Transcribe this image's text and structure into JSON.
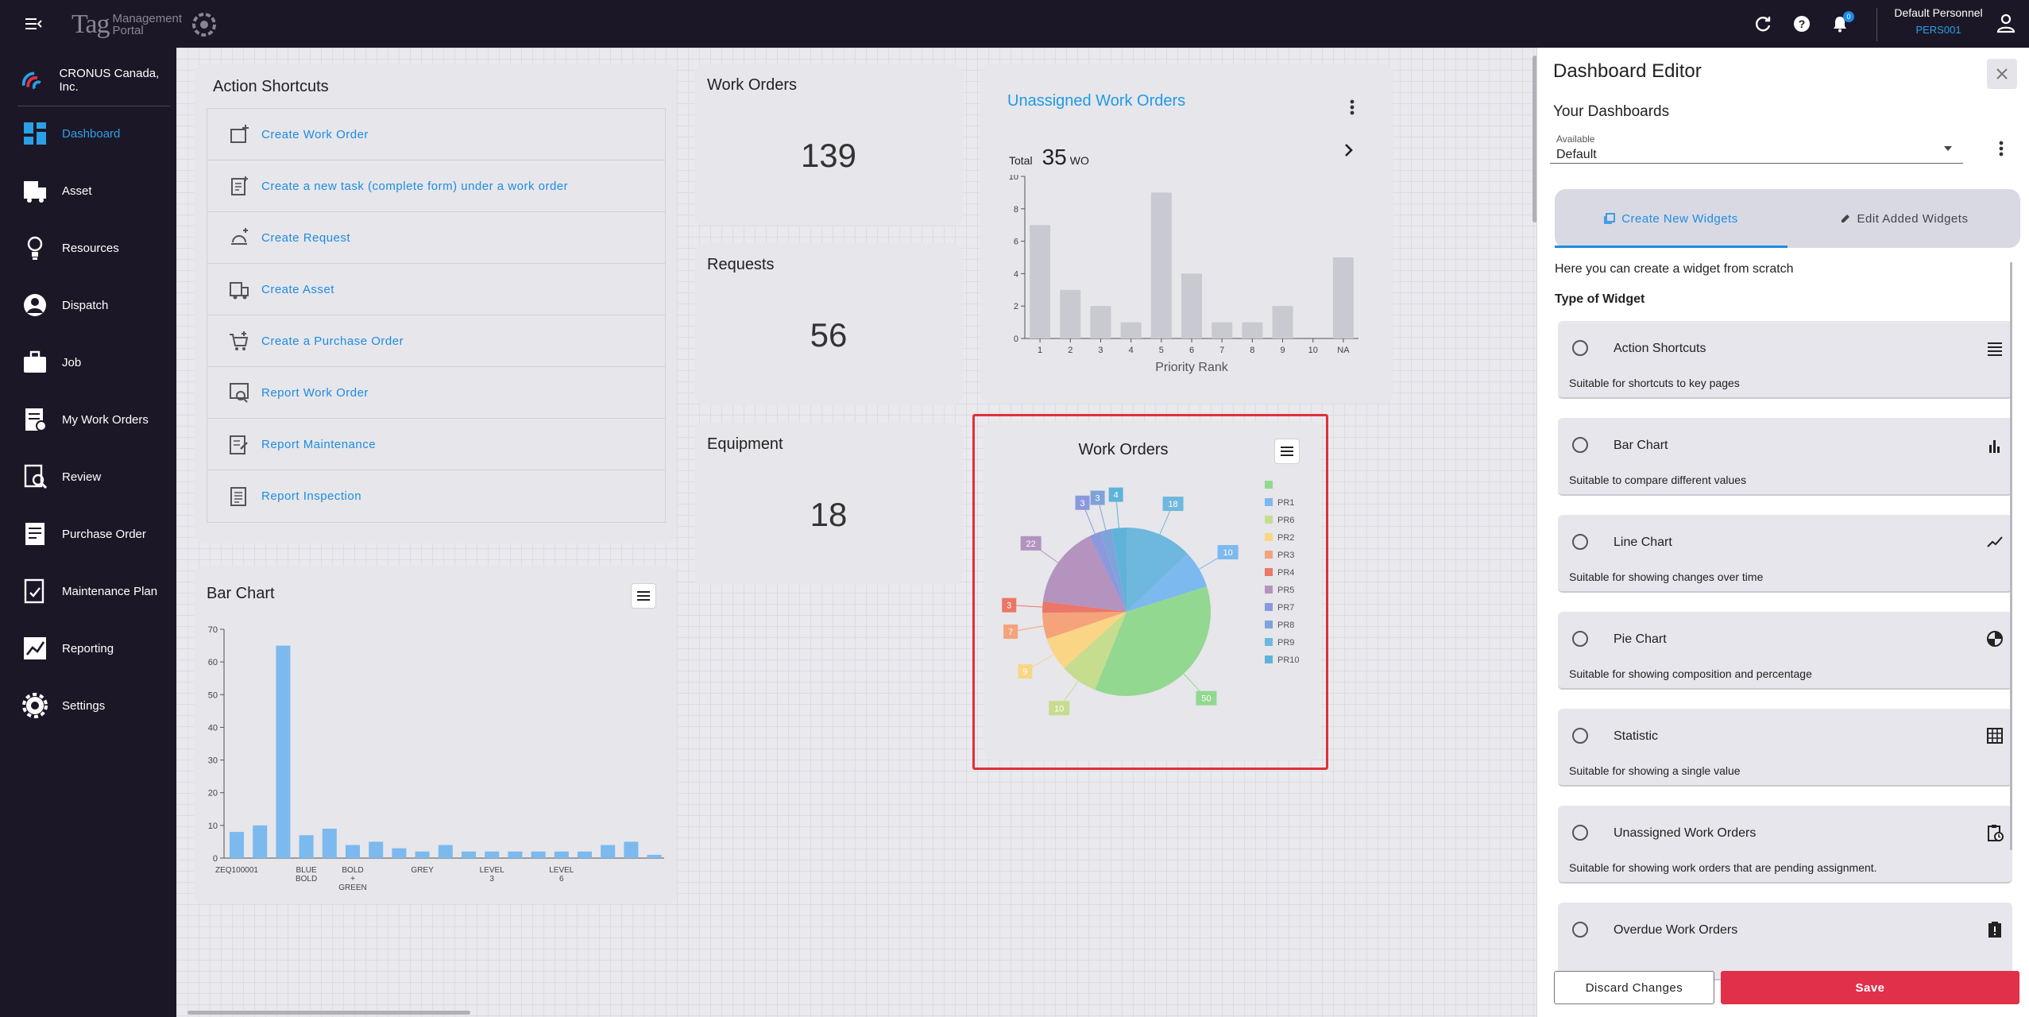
{
  "topbar": {
    "logo_tag": "Tag",
    "logo_line1": "Management",
    "logo_line2": "Portal",
    "notification_count": "0",
    "user_name": "Default Personnel",
    "user_id": "PERS001"
  },
  "sidebar": {
    "company": "CRONUS Canada, Inc.",
    "items": [
      {
        "label": "Dashboard",
        "icon": "dashboard-icon"
      },
      {
        "label": "Asset",
        "icon": "asset-icon"
      },
      {
        "label": "Resources",
        "icon": "resources-icon"
      },
      {
        "label": "Dispatch",
        "icon": "dispatch-icon"
      },
      {
        "label": "Job",
        "icon": "job-icon"
      },
      {
        "label": "My Work Orders",
        "icon": "my-work-orders-icon"
      },
      {
        "label": "Review",
        "icon": "review-icon"
      },
      {
        "label": "Purchase Order",
        "icon": "purchase-order-icon"
      },
      {
        "label": "Maintenance Plan",
        "icon": "maintenance-plan-icon"
      },
      {
        "label": "Reporting",
        "icon": "reporting-icon"
      },
      {
        "label": "Settings",
        "icon": "settings-icon"
      }
    ]
  },
  "shortcuts": {
    "title": "Action Shortcuts",
    "items": [
      "Create Work Order",
      "Create a new task (complete form) under a work order",
      "Create Request",
      "Create Asset",
      "Create a Purchase Order",
      "Report Work Order",
      "Report Maintenance",
      "Report Inspection"
    ]
  },
  "stats": {
    "work_orders": {
      "title": "Work Orders",
      "value": "139"
    },
    "requests": {
      "title": "Requests",
      "value": "56"
    },
    "equipment": {
      "title": "Equipment",
      "value": "18"
    }
  },
  "unassigned": {
    "title": "Unassigned Work Orders",
    "total_label": "Total",
    "total_value": "35",
    "total_unit": "WO"
  },
  "pie_widget": {
    "title": "Work Orders"
  },
  "bar_widget": {
    "title": "Bar Chart"
  },
  "chart_data": [
    {
      "type": "bar",
      "title": "",
      "xlabel": "Priority Rank",
      "ylabel": "",
      "categories": [
        "1",
        "2",
        "3",
        "4",
        "5",
        "6",
        "7",
        "8",
        "9",
        "10",
        "NA"
      ],
      "values": [
        7,
        3,
        2,
        1,
        9,
        4,
        1,
        1,
        2,
        0,
        5
      ],
      "ylim": [
        0,
        10
      ],
      "yticks": [
        0,
        2,
        4,
        6,
        8,
        10
      ],
      "color": "#c9c9d2"
    },
    {
      "type": "pie",
      "title": "Work Orders",
      "legend": [
        "",
        "PR1",
        "PR6",
        "PR2",
        "PR3",
        "PR4",
        "PR5",
        "PR7",
        "PR8",
        "PR9",
        "PR10"
      ],
      "legend_position": "right",
      "slices": [
        {
          "label": "PR9",
          "value": 18,
          "color": "#6fb8dd"
        },
        {
          "label": "PR1",
          "value": 10,
          "color": "#7cb9ee"
        },
        {
          "label": "",
          "value": 50,
          "color": "#92d890"
        },
        {
          "label": "PR6",
          "value": 10,
          "color": "#c6dc8e"
        },
        {
          "label": "PR2",
          "value": 9,
          "color": "#fad586"
        },
        {
          "label": "PR3",
          "value": 7,
          "color": "#f4a37b"
        },
        {
          "label": "PR4",
          "value": 3,
          "color": "#ea7767"
        },
        {
          "label": "PR5",
          "value": 22,
          "color": "#b493be"
        },
        {
          "label": "PR7",
          "value": 3,
          "color": "#8b98de"
        },
        {
          "label": "PR8",
          "value": 3,
          "color": "#7ea3d8"
        },
        {
          "label": "PR10",
          "value": 4,
          "color": "#5fb3d8"
        }
      ]
    },
    {
      "type": "bar",
      "title": "Bar Chart",
      "xlabel": "",
      "ylabel": "",
      "ylim": [
        0,
        70
      ],
      "yticks": [
        0,
        10,
        20,
        30,
        40,
        50,
        60,
        70
      ],
      "values": [
        8,
        10,
        65,
        7,
        9,
        4,
        5,
        3,
        2,
        4,
        2,
        2,
        2,
        2,
        2,
        2,
        4,
        5,
        1
      ],
      "tick_labels": [
        {
          "index": 0,
          "lines": [
            "ZEQ100001"
          ]
        },
        {
          "index": 3,
          "lines": [
            "BLUE",
            "BOLD"
          ]
        },
        {
          "index": 5,
          "lines": [
            "BOLD",
            "+",
            "GREEN"
          ]
        },
        {
          "index": 8,
          "lines": [
            "GREY"
          ]
        },
        {
          "index": 11,
          "lines": [
            "LEVEL",
            "3"
          ]
        },
        {
          "index": 14,
          "lines": [
            "LEVEL",
            "6"
          ]
        }
      ],
      "color": "#7cb9ee"
    }
  ],
  "panel": {
    "title": "Dashboard Editor",
    "subtitle": "Your Dashboards",
    "select_label": "Available",
    "select_value": "Default",
    "tab_create": "Create New Widgets",
    "tab_edit": "Edit Added Widgets",
    "description": "Here you can create a widget from scratch",
    "type_label": "Type of Widget",
    "widgets": [
      {
        "name": "Action Shortcuts",
        "desc": "Suitable for shortcuts to key pages",
        "icon": "list-icon"
      },
      {
        "name": "Bar Chart",
        "desc": "Suitable to compare different values",
        "icon": "bar-chart-icon"
      },
      {
        "name": "Line Chart",
        "desc": "Suitable for showing changes over time",
        "icon": "line-chart-icon"
      },
      {
        "name": "Pie Chart",
        "desc": "Suitable for showing composition and percentage",
        "icon": "pie-chart-icon"
      },
      {
        "name": "Statistic",
        "desc": "Suitable for showing a single value",
        "icon": "grid-icon"
      },
      {
        "name": "Unassigned Work Orders",
        "desc": "Suitable for showing work orders that are pending assignment.",
        "icon": "clipboard-clock-icon"
      },
      {
        "name": "Overdue Work Orders",
        "desc": "",
        "icon": "clipboard-alert-icon"
      }
    ],
    "discard": "Discard Changes",
    "save": "Save"
  }
}
